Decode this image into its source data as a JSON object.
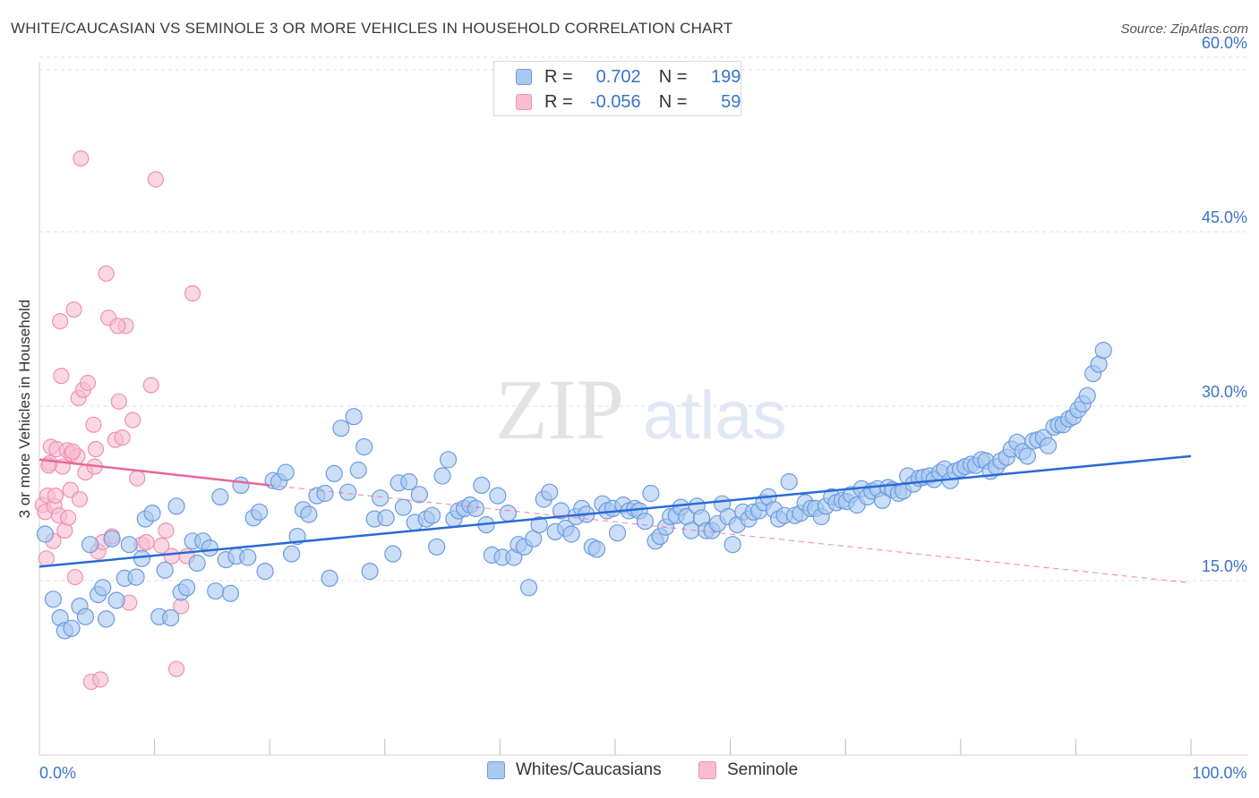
{
  "header": {
    "title": "WHITE/CAUCASIAN VS SEMINOLE 3 OR MORE VEHICLES IN HOUSEHOLD CORRELATION CHART",
    "source": "Source: ZipAtlas.com"
  },
  "watermark": {
    "part1": "ZIP",
    "part2": "atlas"
  },
  "legend_top": [
    {
      "r_label": "R =",
      "r_value": "0.702",
      "n_label": "N =",
      "n_value": "199"
    },
    {
      "r_label": "R =",
      "r_value": "-0.056",
      "n_label": "N =",
      "n_value": "59"
    }
  ],
  "legend_bottom": [
    {
      "label": "Whites/Caucasians"
    },
    {
      "label": "Seminole"
    }
  ],
  "colors": {
    "blue_fill": "#a9c8f0",
    "blue_stroke": "#6b9be0",
    "blue_line": "#2a6ad6",
    "pink_fill": "#f8bdd0",
    "pink_stroke": "#ee92b0",
    "pink_line": "#e8679a",
    "tick_label": "#3a73c8",
    "grid": "#dedede"
  },
  "chart_data": {
    "type": "scatter",
    "title": "WHITE/CAUCASIAN VS SEMINOLE 3 OR MORE VEHICLES IN HOUSEHOLD CORRELATION CHART",
    "xlabel": "",
    "ylabel": "3 or more Vehicles in Household",
    "xlim": [
      0,
      100
    ],
    "ylim": [
      0,
      62
    ],
    "x_tick_labels": [
      {
        "value": 0,
        "label": "0.0%"
      },
      {
        "value": 100,
        "label": "100.0%"
      }
    ],
    "y_tick_labels": [
      {
        "value": 15,
        "label": "15.0%"
      },
      {
        "value": 30,
        "label": "30.0%"
      },
      {
        "value": 45,
        "label": "45.0%"
      },
      {
        "value": 60,
        "label": "60.0%"
      }
    ],
    "grid": true,
    "series": [
      {
        "name": "Whites/Caucasians",
        "color": "#a9c8f0",
        "trend": {
          "x": [
            0,
            100
          ],
          "y": [
            16.2,
            25.7
          ],
          "style": "solid"
        },
        "points": [
          [
            0.5,
            19
          ],
          [
            1.2,
            13.4
          ],
          [
            1.8,
            11.8
          ],
          [
            2.2,
            10.7
          ],
          [
            2.8,
            10.9
          ],
          [
            3.5,
            12.8
          ],
          [
            4,
            11.9
          ],
          [
            4.4,
            18.1
          ],
          [
            5.1,
            13.8
          ],
          [
            5.5,
            14.4
          ],
          [
            5.8,
            11.7
          ],
          [
            6.3,
            18.6
          ],
          [
            6.7,
            13.3
          ],
          [
            7.4,
            15.2
          ],
          [
            7.8,
            18.1
          ],
          [
            8.4,
            15.3
          ],
          [
            8.9,
            16.9
          ],
          [
            9.2,
            20.3
          ],
          [
            9.8,
            20.8
          ],
          [
            10.4,
            11.9
          ],
          [
            10.9,
            15.9
          ],
          [
            11.4,
            11.8
          ],
          [
            11.9,
            21.4
          ],
          [
            12.3,
            14
          ],
          [
            12.8,
            14.4
          ],
          [
            13.3,
            18.4
          ],
          [
            13.7,
            16.5
          ],
          [
            14.2,
            18.4
          ],
          [
            14.8,
            17.8
          ],
          [
            15.3,
            14.1
          ],
          [
            15.7,
            22.2
          ],
          [
            16.2,
            16.8
          ],
          [
            16.6,
            13.9
          ],
          [
            17.1,
            17.1
          ],
          [
            17.5,
            23.2
          ],
          [
            18.1,
            17
          ],
          [
            18.6,
            20.4
          ],
          [
            19.1,
            20.9
          ],
          [
            19.6,
            15.8
          ],
          [
            20.3,
            23.6
          ],
          [
            20.8,
            23.5
          ],
          [
            21.4,
            24.3
          ],
          [
            21.9,
            17.3
          ],
          [
            22.4,
            18.8
          ],
          [
            22.9,
            21.1
          ],
          [
            23.4,
            20.7
          ],
          [
            24.1,
            22.3
          ],
          [
            24.8,
            22.5
          ],
          [
            25.2,
            15.2
          ],
          [
            25.6,
            24.2
          ],
          [
            26.2,
            28.1
          ],
          [
            26.8,
            22.6
          ],
          [
            27.3,
            29.1
          ],
          [
            27.7,
            24.5
          ],
          [
            28.2,
            26.5
          ],
          [
            28.7,
            15.8
          ],
          [
            29.1,
            20.3
          ],
          [
            29.6,
            22.1
          ],
          [
            30.1,
            20.4
          ],
          [
            30.7,
            17.3
          ],
          [
            31.2,
            23.4
          ],
          [
            31.6,
            21.3
          ],
          [
            32.1,
            23.5
          ],
          [
            32.6,
            20
          ],
          [
            33,
            22.4
          ],
          [
            33.6,
            20.3
          ],
          [
            34.1,
            20.6
          ],
          [
            34.5,
            17.9
          ],
          [
            35,
            24
          ],
          [
            35.5,
            25.4
          ],
          [
            36,
            20.3
          ],
          [
            36.4,
            21
          ],
          [
            36.9,
            21.2
          ],
          [
            37.4,
            21.5
          ],
          [
            37.9,
            21.2
          ],
          [
            38.4,
            23.2
          ],
          [
            38.8,
            19.8
          ],
          [
            39.3,
            17.2
          ],
          [
            39.8,
            22.3
          ],
          [
            40.2,
            17
          ],
          [
            40.7,
            20.8
          ],
          [
            41.2,
            17
          ],
          [
            41.6,
            18.1
          ],
          [
            42.1,
            17.9
          ],
          [
            42.5,
            14.4
          ],
          [
            42.9,
            18.6
          ],
          [
            43.4,
            19.8
          ],
          [
            43.8,
            22
          ],
          [
            44.3,
            22.6
          ],
          [
            44.8,
            19.2
          ],
          [
            45.3,
            21
          ],
          [
            45.7,
            19.5
          ],
          [
            46.2,
            19
          ],
          [
            46.6,
            20.5
          ],
          [
            47.1,
            21.2
          ],
          [
            47.5,
            20.7
          ],
          [
            48,
            17.9
          ],
          [
            48.4,
            17.7
          ],
          [
            48.9,
            21.6
          ],
          [
            49.3,
            21
          ],
          [
            49.8,
            21.2
          ],
          [
            50.2,
            19.1
          ],
          [
            50.7,
            21.5
          ],
          [
            51.2,
            21
          ],
          [
            51.7,
            21.2
          ],
          [
            52.1,
            21
          ],
          [
            52.6,
            20.1
          ],
          [
            53.1,
            22.5
          ],
          [
            53.5,
            18.4
          ],
          [
            53.9,
            18.8
          ],
          [
            54.4,
            19.6
          ],
          [
            54.8,
            20.5
          ],
          [
            55.3,
            20.6
          ],
          [
            55.7,
            21.3
          ],
          [
            56.2,
            20.5
          ],
          [
            56.6,
            19.3
          ],
          [
            57.1,
            21.4
          ],
          [
            57.5,
            20.4
          ],
          [
            57.9,
            19.3
          ],
          [
            58.4,
            19.3
          ],
          [
            58.9,
            19.9
          ],
          [
            59.3,
            21.6
          ],
          [
            59.8,
            20.5
          ],
          [
            60.2,
            18.1
          ],
          [
            60.6,
            19.8
          ],
          [
            61.1,
            20.9
          ],
          [
            61.6,
            20.3
          ],
          [
            62,
            20.9
          ],
          [
            62.5,
            21
          ],
          [
            62.9,
            21.7
          ],
          [
            63.3,
            22.2
          ],
          [
            63.8,
            21.1
          ],
          [
            64.2,
            20.3
          ],
          [
            64.7,
            20.6
          ],
          [
            65.1,
            23.5
          ],
          [
            65.6,
            20.6
          ],
          [
            66.1,
            20.8
          ],
          [
            66.5,
            21.7
          ],
          [
            67,
            21.2
          ],
          [
            67.4,
            21.2
          ],
          [
            67.9,
            20.5
          ],
          [
            68.3,
            21.4
          ],
          [
            68.8,
            22.2
          ],
          [
            69.2,
            21.7
          ],
          [
            69.7,
            21.9
          ],
          [
            70.1,
            21.8
          ],
          [
            70.5,
            22.4
          ],
          [
            71,
            21.5
          ],
          [
            71.4,
            22.9
          ],
          [
            71.9,
            22.2
          ],
          [
            72.3,
            22.7
          ],
          [
            72.8,
            22.9
          ],
          [
            73.2,
            21.9
          ],
          [
            73.7,
            23
          ],
          [
            74.1,
            22.8
          ],
          [
            74.6,
            22.5
          ],
          [
            75,
            22.7
          ],
          [
            75.4,
            24
          ],
          [
            75.9,
            23.3
          ],
          [
            76.4,
            23.8
          ],
          [
            76.8,
            23.9
          ],
          [
            77.3,
            24
          ],
          [
            77.7,
            23.7
          ],
          [
            78.2,
            24.3
          ],
          [
            78.6,
            24.6
          ],
          [
            79.1,
            23.6
          ],
          [
            79.5,
            24.4
          ],
          [
            80,
            24.6
          ],
          [
            80.4,
            24.8
          ],
          [
            80.9,
            25
          ],
          [
            81.3,
            24.9
          ],
          [
            81.8,
            25.4
          ],
          [
            82.2,
            25.3
          ],
          [
            82.6,
            24.4
          ],
          [
            83.1,
            24.8
          ],
          [
            83.5,
            25.3
          ],
          [
            84,
            25.6
          ],
          [
            84.4,
            26.3
          ],
          [
            84.9,
            26.9
          ],
          [
            85.4,
            26.1
          ],
          [
            85.8,
            25.7
          ],
          [
            86.3,
            27
          ],
          [
            86.7,
            27.1
          ],
          [
            87.2,
            27.3
          ],
          [
            87.6,
            26.6
          ],
          [
            88.1,
            28.2
          ],
          [
            88.5,
            28.4
          ],
          [
            88.9,
            28.4
          ],
          [
            89.4,
            28.9
          ],
          [
            89.8,
            29.1
          ],
          [
            90.2,
            29.7
          ],
          [
            90.6,
            30.2
          ],
          [
            91,
            30.9
          ],
          [
            91.5,
            32.8
          ],
          [
            92,
            33.6
          ],
          [
            92.4,
            34.8
          ]
        ]
      },
      {
        "name": "Seminole",
        "color": "#f8bdd0",
        "trend": {
          "x": [
            0,
            20
          ],
          "y": [
            25.4,
            23.2
          ],
          "style": "solid",
          "extension": {
            "x": [
              20,
              100
            ],
            "y": [
              23.2,
              14.8
            ],
            "style": "dashed"
          }
        },
        "points": [
          [
            0.3,
            21.5
          ],
          [
            0.5,
            20.9
          ],
          [
            0.6,
            16.9
          ],
          [
            0.7,
            22.3
          ],
          [
            0.9,
            25.1
          ],
          [
            1,
            26.5
          ],
          [
            1.2,
            18.4
          ],
          [
            1.3,
            21.4
          ],
          [
            1.5,
            26.3
          ],
          [
            1.7,
            20.6
          ],
          [
            1.8,
            37.3
          ],
          [
            1.9,
            32.6
          ],
          [
            2,
            24.8
          ],
          [
            2.2,
            19.3
          ],
          [
            2.4,
            26.2
          ],
          [
            2.5,
            20.4
          ],
          [
            2.7,
            22.8
          ],
          [
            2.8,
            25.9
          ],
          [
            3,
            38.3
          ],
          [
            3.1,
            15.3
          ],
          [
            3.3,
            25.7
          ],
          [
            3.4,
            30.7
          ],
          [
            3.5,
            22
          ],
          [
            3.6,
            51.3
          ],
          [
            3.8,
            31.4
          ],
          [
            4,
            24.3
          ],
          [
            4.2,
            32
          ],
          [
            4.5,
            6.3
          ],
          [
            4.7,
            28.4
          ],
          [
            4.9,
            26.3
          ],
          [
            5.1,
            17.5
          ],
          [
            5.3,
            6.5
          ],
          [
            5.5,
            18.3
          ],
          [
            5.8,
            41.4
          ],
          [
            6,
            37.6
          ],
          [
            6.3,
            18.8
          ],
          [
            6.6,
            27.1
          ],
          [
            6.9,
            30.4
          ],
          [
            7.2,
            27.3
          ],
          [
            7.5,
            36.9
          ],
          [
            7.8,
            13.1
          ],
          [
            8.1,
            28.8
          ],
          [
            8.5,
            23.8
          ],
          [
            8.9,
            18.1
          ],
          [
            9.3,
            18.3
          ],
          [
            9.7,
            31.8
          ],
          [
            10.1,
            49.5
          ],
          [
            10.6,
            18
          ],
          [
            11,
            19.3
          ],
          [
            11.5,
            17.1
          ],
          [
            11.9,
            7.4
          ],
          [
            12.3,
            12.8
          ],
          [
            12.8,
            17.1
          ],
          [
            13.3,
            39.7
          ],
          [
            6.8,
            36.9
          ],
          [
            2.9,
            26.1
          ],
          [
            4.8,
            24.8
          ],
          [
            1.4,
            22.3
          ],
          [
            0.8,
            24.9
          ]
        ]
      }
    ]
  }
}
